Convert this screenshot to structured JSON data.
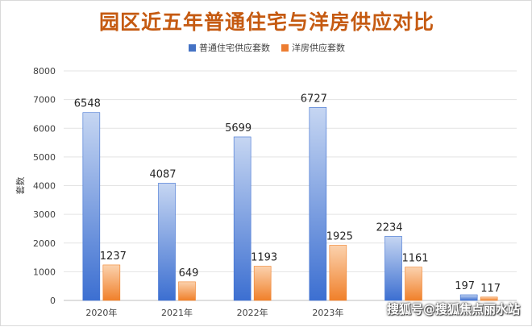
{
  "chart_data": {
    "type": "bar",
    "title": "园区近五年普通住宅与洋房供应对比",
    "ylabel": "套数",
    "xlabel": "",
    "categories": [
      "2020年",
      "2021年",
      "2022年",
      "2023年",
      "",
      ""
    ],
    "series": [
      {
        "name": "普通住宅供应套数",
        "values": [
          6548,
          4087,
          5699,
          6727,
          2234,
          197
        ]
      },
      {
        "name": "洋房供应套数",
        "values": [
          1237,
          649,
          1193,
          1925,
          1161,
          117
        ]
      }
    ],
    "ylim": [
      0,
      8000
    ],
    "yticks": [
      0,
      1000,
      2000,
      3000,
      4000,
      5000,
      6000,
      7000,
      8000
    ],
    "grid": true,
    "legend_position": "top",
    "colors": {
      "series1_top": "#c6d6f2",
      "series1_bottom": "#3c6fd1",
      "series2_top": "#fbd2ae",
      "series2_bottom": "#f0802a",
      "title": "#c55a11"
    }
  },
  "watermark": "搜狐号@搜狐焦点丽水站"
}
